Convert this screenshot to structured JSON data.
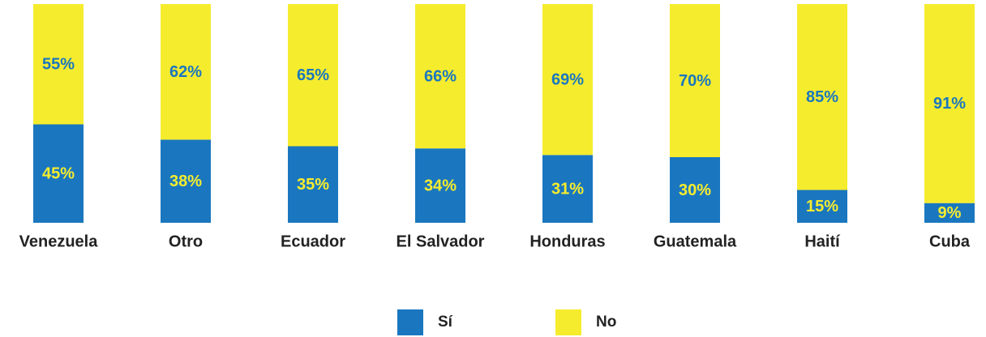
{
  "chart_data": {
    "type": "stacked_bar",
    "categories": [
      "Venezuela",
      "Otro",
      "Ecuador",
      "El Salvador",
      "Honduras",
      "Guatemala",
      "Haití",
      "Cuba"
    ],
    "series": [
      {
        "name": "Sí",
        "color": "#1a77bf",
        "label_color": "#f6ec2e",
        "values": [
          45,
          38,
          35,
          34,
          31,
          30,
          15,
          9
        ],
        "value_labels": [
          "45%",
          "38%",
          "35%",
          "34%",
          "31%",
          "30%",
          "15%",
          "9%"
        ]
      },
      {
        "name": "No",
        "color": "#f6ec2e",
        "label_color": "#1a77bf",
        "values": [
          55,
          62,
          65,
          66,
          69,
          70,
          85,
          91
        ],
        "value_labels": [
          "55%",
          "62%",
          "65%",
          "66%",
          "69%",
          "70%",
          "85%",
          "91%"
        ]
      }
    ],
    "ylim": [
      0,
      100
    ]
  }
}
